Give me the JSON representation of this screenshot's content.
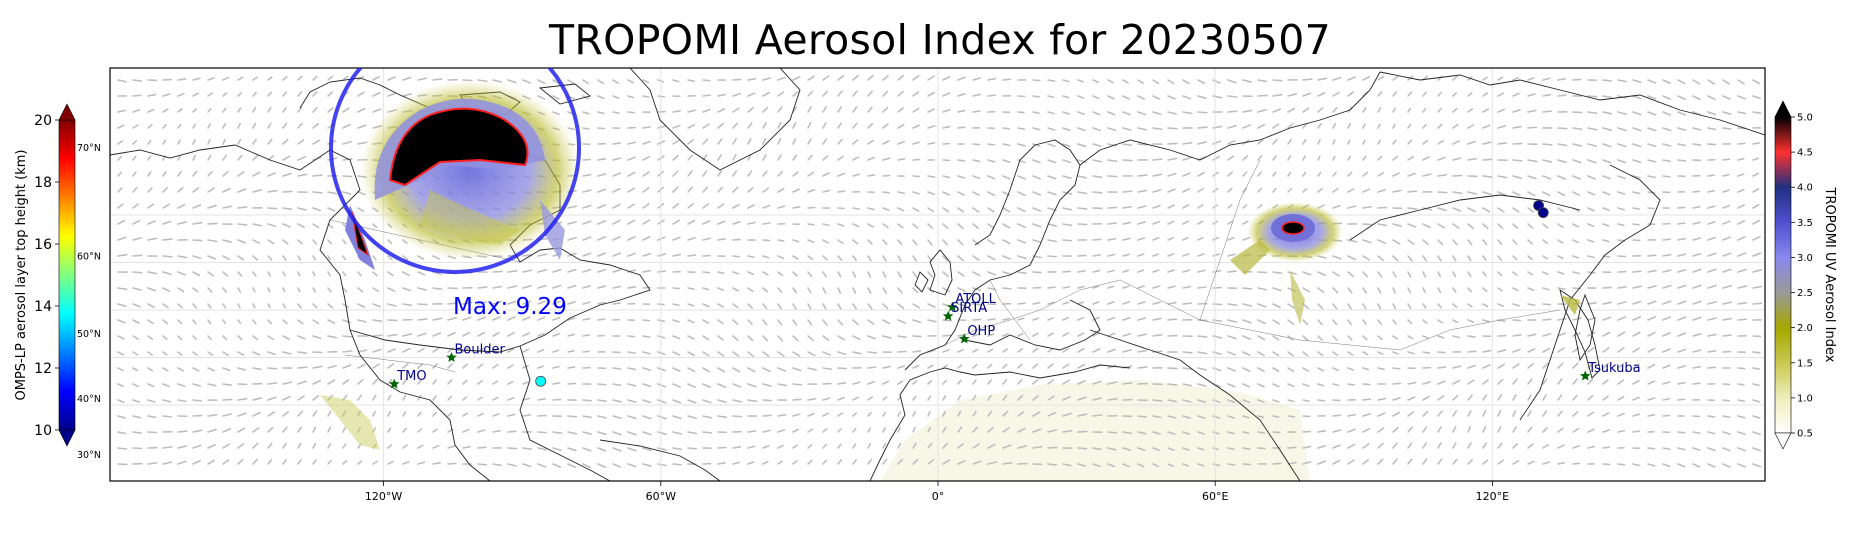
{
  "title": "TROPOMI Aerosol Index for 20230507",
  "annotation": {
    "max_label": "Max: 9.29"
  },
  "lon_ticks": [
    {
      "lon": -120,
      "label": "120°W"
    },
    {
      "lon": -60,
      "label": "60°W"
    },
    {
      "lon": 0,
      "label": "0°"
    },
    {
      "lon": 60,
      "label": "60°E"
    },
    {
      "lon": 120,
      "label": "120°E"
    }
  ],
  "left_colorbar": {
    "label": "OMPS-LP aerosol layer top height (km)",
    "min": 10,
    "max": 20,
    "ticks": [
      {
        "value": 10,
        "label": "10"
      },
      {
        "value": 12,
        "label": "12"
      },
      {
        "value": 14,
        "label": "14"
      },
      {
        "value": 16,
        "label": "16"
      },
      {
        "value": 18,
        "label": "18"
      },
      {
        "value": 20,
        "label": "20"
      }
    ],
    "lat_labels": [
      {
        "value": 9.2,
        "label": "30°N"
      },
      {
        "value": 11.0,
        "label": "40°N"
      },
      {
        "value": 13.1,
        "label": "50°N"
      },
      {
        "value": 15.6,
        "label": "60°N"
      },
      {
        "value": 19.1,
        "label": "70°N"
      }
    ],
    "colors": [
      "#00008b",
      "#0000ff",
      "#0080ff",
      "#00ffff",
      "#80ff80",
      "#ffff00",
      "#ff8000",
      "#ff0000",
      "#800000"
    ]
  },
  "right_colorbar": {
    "label": "TROPOMI UV Aerosol Index",
    "min": 0.5,
    "max": 5.0,
    "ticks": [
      {
        "value": 0.5,
        "label": "0.5"
      },
      {
        "value": 1.0,
        "label": "1.0"
      },
      {
        "value": 1.5,
        "label": "1.5"
      },
      {
        "value": 2.0,
        "label": "2.0"
      },
      {
        "value": 2.5,
        "label": "2.5"
      },
      {
        "value": 3.0,
        "label": "3.0"
      },
      {
        "value": 3.5,
        "label": "3.5"
      },
      {
        "value": 4.0,
        "label": "4.0"
      },
      {
        "value": 4.5,
        "label": "4.5"
      },
      {
        "value": 5.0,
        "label": "5.0"
      }
    ],
    "colors": [
      "#ffffff",
      "#eeeebb",
      "#c8c850",
      "#a6a600",
      "#9a9a9a",
      "#8888ee",
      "#5050d0",
      "#203080",
      "#ff3030",
      "#000000"
    ]
  },
  "stations": [
    {
      "name": "TMO",
      "lon": -117.7,
      "lat": 34.4
    },
    {
      "name": "Boulder",
      "lon": -105.3,
      "lat": 40.0
    },
    {
      "name": "ATOLL",
      "lon": 3.1,
      "lat": 50.6
    },
    {
      "name": "SIRTA",
      "lon": 2.2,
      "lat": 48.7
    },
    {
      "name": "OHP",
      "lon": 5.7,
      "lat": 43.9
    },
    {
      "name": "Tsukuba",
      "lon": 140.1,
      "lat": 36.1
    }
  ],
  "omps_points": [
    {
      "lon": -86.0,
      "lat": 35.0,
      "height_km": 14.0
    },
    {
      "lon": 130.0,
      "lat": 72.0,
      "height_km": 10.3
    },
    {
      "lon": 131.0,
      "lat": 70.5,
      "height_km": 10.2
    }
  ],
  "colors": {
    "max_label": "#0000ff",
    "station_marker": "#006400",
    "station_label": "#00008b",
    "circle": "#2222ee"
  }
}
